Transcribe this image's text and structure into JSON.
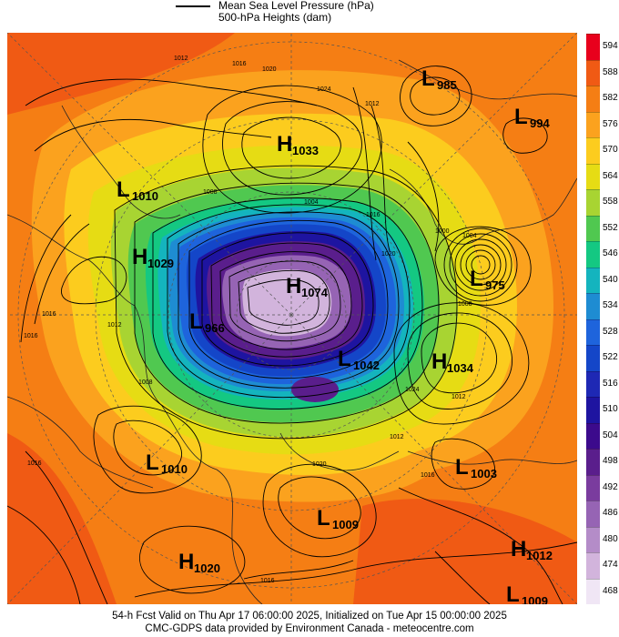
{
  "legend": {
    "mslp_label": "Mean Sea Level Pressure (hPa)",
    "heights_label": "500-hPa Heights (dam)"
  },
  "footer": {
    "line1": "54-h Fcst Valid on Thu Apr 17 06:00:00 2025, Initialized on Tue Apr 15 00:00:00 2025",
    "line2": "CMC-GDPS data provided by Environment Canada - meteocentre.com"
  },
  "colorbar": {
    "levels": [
      "594",
      "588",
      "582",
      "576",
      "570",
      "564",
      "558",
      "552",
      "546",
      "540",
      "534",
      "528",
      "522",
      "516",
      "510",
      "504",
      "498",
      "492",
      "486",
      "480",
      "474",
      "468"
    ],
    "colors": [
      "#e8001c",
      "#f05a14",
      "#f57e14",
      "#fba21e",
      "#fccc1e",
      "#e6dc14",
      "#a8d432",
      "#50c850",
      "#14c882",
      "#14b4be",
      "#1e8cd2",
      "#1e64dc",
      "#1446c8",
      "#1e28b4",
      "#1e14a0",
      "#3c0a8c",
      "#5a1e8c",
      "#7a3c9e",
      "#9664b4",
      "#b48cc8",
      "#d2b4dc",
      "#f0e6f5"
    ]
  },
  "systems": [
    {
      "type": "L",
      "value": "985"
    },
    {
      "type": "L",
      "value": "994"
    },
    {
      "type": "H",
      "value": "1033"
    },
    {
      "type": "L",
      "value": "1010"
    },
    {
      "type": "H",
      "value": "1029"
    },
    {
      "type": "H",
      "value": "1074"
    },
    {
      "type": "L",
      "value": "975"
    },
    {
      "type": "L",
      "value": "966"
    },
    {
      "type": "L",
      "value": "1042"
    },
    {
      "type": "H",
      "value": "1034"
    },
    {
      "type": "L",
      "value": "1010"
    },
    {
      "type": "L",
      "value": "1003"
    },
    {
      "type": "L",
      "value": "1009"
    },
    {
      "type": "H",
      "value": "1012"
    },
    {
      "type": "H",
      "value": "1020"
    },
    {
      "type": "L",
      "value": "1009"
    }
  ],
  "isobar_labels": [
    "1012",
    "1016",
    "1020",
    "1024",
    "1008",
    "1012",
    "1004",
    "1016",
    "1020",
    "1016",
    "1016",
    "1012",
    "1008",
    "1024",
    "1012",
    "1016",
    "1012",
    "1020",
    "1016",
    "1008",
    "1004",
    "1000",
    "1016"
  ]
}
